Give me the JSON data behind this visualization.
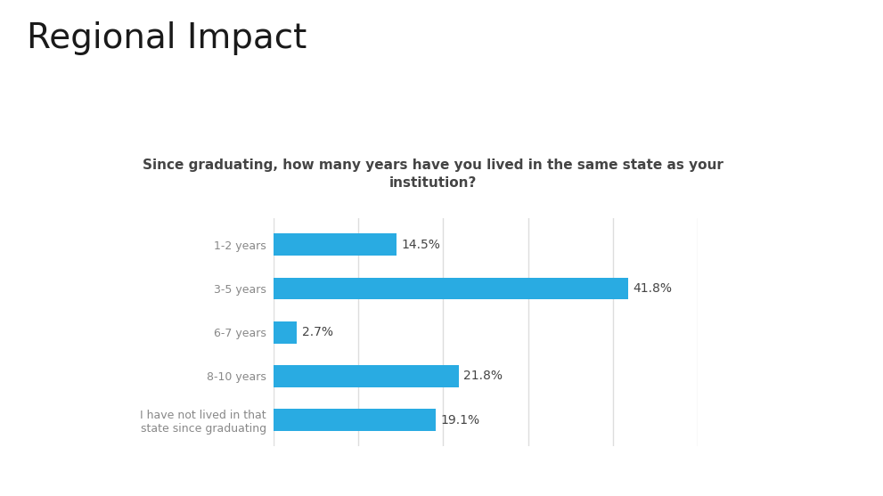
{
  "title": "Regional Impact",
  "chart_title": "Since graduating, how many years have you lived in the same state as your\ninstitution?",
  "categories": [
    "1-2 years",
    "3-5 years",
    "6-7 years",
    "8-10 years",
    "I have not lived in that\nstate since graduating"
  ],
  "values": [
    14.5,
    41.8,
    2.7,
    21.8,
    19.1
  ],
  "labels": [
    "14.5%",
    "41.8%",
    "2.7%",
    "21.8%",
    "19.1%"
  ],
  "bar_color": "#29ABE2",
  "background_color": "#ffffff",
  "chart_bg_color": "#efefef",
  "bar_area_bg": "#ffffff",
  "title_color": "#1a1a1a",
  "chart_title_color": "#444444",
  "tick_color": "#888888",
  "header_bar_dark": "#1e3f7a",
  "header_bar_light": "#b0b8c1",
  "grid_color": "#dddddd",
  "figsize": [
    9.91,
    5.57
  ],
  "dpi": 100,
  "xlim": [
    0,
    50
  ],
  "label_fontsize": 10,
  "chart_title_fontsize": 11,
  "title_fontsize": 28,
  "ytick_fontsize": 9,
  "bar_height": 0.5
}
